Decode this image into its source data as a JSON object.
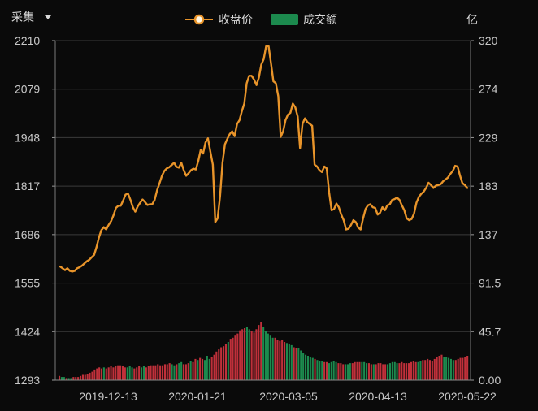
{
  "header": {
    "dropdown_label": "采集",
    "dropdown_icon": "caret-down-icon",
    "unit_label": "亿"
  },
  "legend": {
    "close_label": "收盘价",
    "volume_label": "成交额"
  },
  "colors": {
    "background": "#0a0a0a",
    "line": "#e8942a",
    "up": "#c0303a",
    "down": "#1c8a4e",
    "grid": "#3a3a3a",
    "axis": "#9a9a9a"
  },
  "chart_data": {
    "type": "line",
    "y_left_ticks": [
      "2210",
      "2079",
      "1948",
      "1817",
      "1686",
      "1555",
      "1424",
      "1293"
    ],
    "y_right_ticks": [
      "320",
      "274",
      "229",
      "183",
      "137",
      "91.5",
      "45.7",
      "0.00"
    ],
    "x_ticks": [
      "2019-12-13",
      "2020-01-21",
      "2020-03-05",
      "2020-04-13",
      "2020-05-22"
    ],
    "price_ylim": [
      1555,
      2210
    ],
    "volume_ylim": [
      0,
      91.5
    ],
    "close": [
      1600,
      1595,
      1590,
      1595,
      1588,
      1586,
      1588,
      1595,
      1598,
      1602,
      1608,
      1614,
      1618,
      1625,
      1631,
      1652,
      1678,
      1698,
      1706,
      1700,
      1712,
      1722,
      1738,
      1758,
      1764,
      1764,
      1778,
      1794,
      1797,
      1780,
      1760,
      1748,
      1762,
      1772,
      1781,
      1774,
      1766,
      1768,
      1768,
      1780,
      1806,
      1825,
      1845,
      1858,
      1865,
      1868,
      1874,
      1880,
      1869,
      1867,
      1880,
      1860,
      1845,
      1852,
      1860,
      1864,
      1862,
      1885,
      1915,
      1905,
      1935,
      1946,
      1910,
      1875,
      1720,
      1730,
      1790,
      1880,
      1930,
      1945,
      1958,
      1965,
      1952,
      1985,
      1995,
      2020,
      2040,
      2095,
      2115,
      2115,
      2105,
      2090,
      2110,
      2145,
      2160,
      2195,
      2195,
      2150,
      2100,
      2095,
      2060,
      1950,
      1965,
      1995,
      2010,
      2015,
      2040,
      2030,
      2005,
      1920,
      1985,
      2000,
      1990,
      1985,
      1980,
      1875,
      1870,
      1860,
      1855,
      1870,
      1865,
      1800,
      1752,
      1755,
      1770,
      1760,
      1740,
      1725,
      1700,
      1702,
      1712,
      1725,
      1720,
      1705,
      1700,
      1730,
      1755,
      1765,
      1768,
      1760,
      1758,
      1740,
      1745,
      1760,
      1752,
      1765,
      1768,
      1780,
      1782,
      1786,
      1780,
      1765,
      1752,
      1730,
      1725,
      1728,
      1742,
      1772,
      1788,
      1796,
      1802,
      1812,
      1826,
      1820,
      1812,
      1818,
      1820,
      1822,
      1830,
      1835,
      1840,
      1850,
      1858,
      1872,
      1870,
      1845,
      1825,
      1820,
      1812
    ],
    "volume_groups": [
      {
        "start": 0,
        "values": [
          4,
          3,
          3,
          2,
          2,
          2,
          3,
          3,
          3,
          4,
          5,
          5,
          6,
          7,
          8,
          10,
          11,
          12,
          11,
          12,
          11,
          12,
          13,
          12,
          13,
          14,
          14,
          13,
          12,
          12,
          13,
          12,
          11,
          12,
          13,
          12,
          13,
          12,
          13,
          14,
          14,
          14,
          15,
          14,
          14,
          15,
          15,
          16,
          15,
          14,
          15,
          16,
          17,
          15,
          15,
          16,
          18,
          17,
          20,
          19,
          21,
          20,
          19,
          23,
          20,
          22,
          24,
          27,
          29,
          31,
          32,
          34,
          36,
          39,
          40,
          42,
          44,
          47,
          48,
          49,
          50,
          48,
          46,
          45,
          48,
          52,
          55,
          50,
          46,
          44,
          42,
          40,
          40,
          38,
          37,
          38,
          36,
          35,
          34,
          33,
          31,
          30,
          30,
          28,
          26,
          24,
          23,
          22,
          21,
          20,
          19,
          18,
          18,
          17,
          17,
          16,
          17,
          18,
          17,
          16,
          16,
          15,
          15,
          15,
          16,
          16,
          17,
          17,
          17,
          17,
          17,
          16,
          16,
          15,
          15,
          15,
          16,
          16,
          15,
          15,
          15,
          16,
          17,
          17,
          16,
          16,
          17,
          16,
          16,
          16,
          17,
          18,
          17,
          17,
          18,
          19,
          19,
          20,
          19,
          18,
          20,
          22,
          23,
          24,
          22,
          22,
          21,
          20,
          19,
          19,
          20,
          21,
          21,
          22,
          23
        ]
      }
    ]
  }
}
